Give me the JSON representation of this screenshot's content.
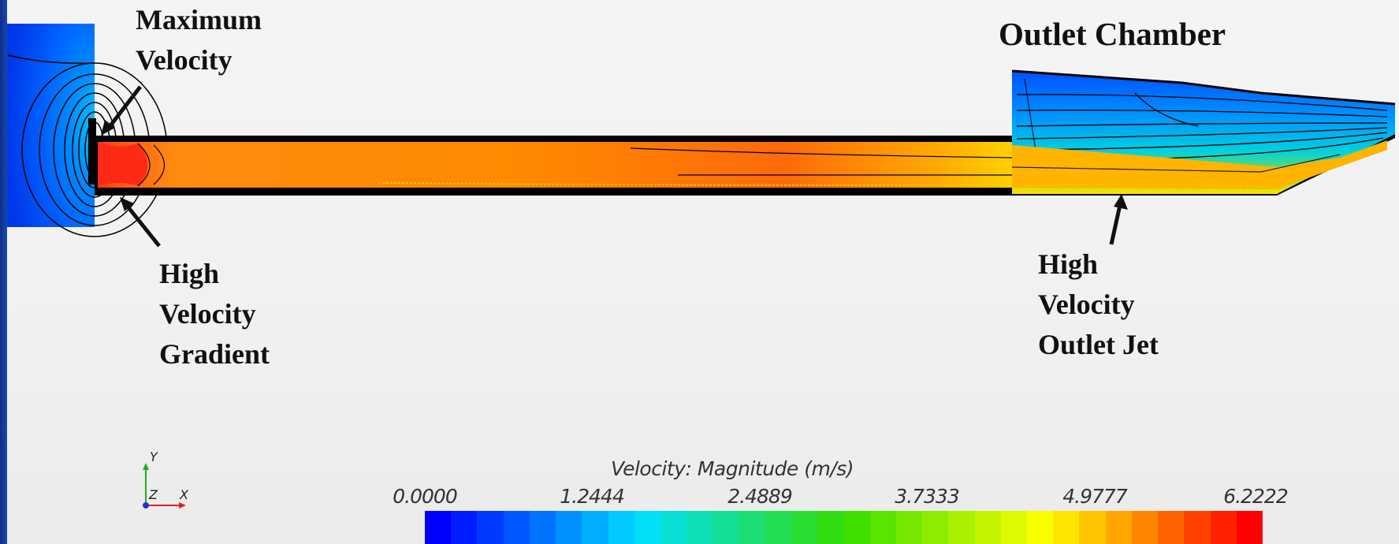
{
  "annotations": {
    "maximum_velocity": [
      "Maximum",
      "Velocity"
    ],
    "high_velocity_gradient": [
      "High",
      "Velocity",
      "Gradient"
    ],
    "outlet_chamber": "Outlet Chamber",
    "high_velocity_outlet_jet": [
      "High",
      "Velocity",
      "Outlet Jet"
    ]
  },
  "axes_triad": {
    "y": "Y",
    "z": "Z",
    "x": "X"
  },
  "legend": {
    "title": "Velocity: Magnitude (m/s)",
    "ticks": [
      "0.0000",
      "1.2444",
      "2.4889",
      "3.7333",
      "4.9777",
      "6.2222"
    ],
    "range": [
      0.0,
      6.2222
    ],
    "color_count": 32,
    "colors": {
      "low": "#0000ff",
      "mid_low": "#00e0ff",
      "mid": "#33dd00",
      "mid_high": "#ffff00",
      "high": "#ff0000"
    }
  }
}
